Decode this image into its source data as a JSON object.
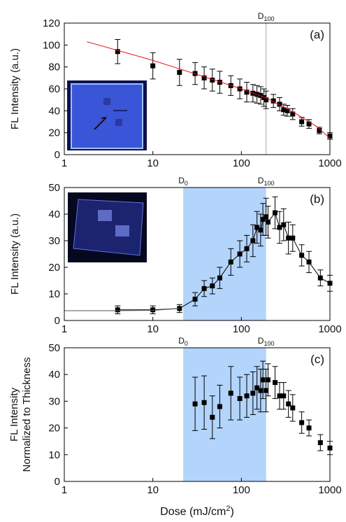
{
  "chart_data": [
    {
      "type": "scatter",
      "panel_label": "(a)",
      "ylabel": [
        "FL Intensity (a.u.)"
      ],
      "xscale": "log",
      "xlim": [
        1,
        1000
      ],
      "xticks": [
        1,
        10,
        100,
        1000
      ],
      "ylim": [
        0,
        120
      ],
      "yticks": [
        0,
        20,
        40,
        60,
        80,
        100,
        120
      ],
      "markers": [
        {
          "x": 190,
          "text": "D",
          "sub": "100",
          "line": true
        }
      ],
      "series": [
        {
          "color": "#000000",
          "marker": true,
          "x": [
            4,
            10,
            20,
            30,
            38,
            47,
            57,
            76,
            96,
            115,
            135,
            150,
            165,
            180,
            190,
            230,
            270,
            300,
            330,
            380,
            480,
            580,
            760,
            1000
          ],
          "values": [
            94,
            81,
            75,
            74,
            70,
            68,
            66,
            63,
            60,
            57,
            56,
            55,
            54,
            52,
            50,
            49,
            46,
            41,
            40,
            37,
            30,
            28,
            22,
            17
          ],
          "errors": [
            11,
            12,
            12,
            10,
            10,
            10,
            10,
            9,
            9,
            9,
            8,
            8,
            8,
            8,
            8,
            6,
            6,
            5,
            5,
            5,
            4,
            4,
            3,
            3
          ]
        },
        {
          "color": "#e8141c",
          "line": true,
          "x": [
            1.8,
            10,
            50,
            100,
            200,
            400,
            700,
            1000
          ],
          "values": [
            103,
            86,
            68,
            60,
            51,
            38,
            26,
            15
          ]
        }
      ]
    },
    {
      "type": "scatter",
      "panel_label": "(b)",
      "ylabel": [
        "FL Intensity (a.u.)"
      ],
      "xscale": "log",
      "xlim": [
        1,
        1000
      ],
      "xticks": [
        1,
        10,
        100,
        1000
      ],
      "ylim": [
        0,
        50
      ],
      "yticks": [
        0,
        10,
        20,
        30,
        40,
        50
      ],
      "shade": {
        "from": 22,
        "to": 190,
        "color": "#b3d4fb"
      },
      "markers": [
        {
          "x": 22,
          "text": "D",
          "sub": "0"
        },
        {
          "x": 190,
          "text": "D",
          "sub": "100"
        }
      ],
      "series": [
        {
          "color": "#000000",
          "marker": true,
          "line": true,
          "x": [
            4,
            10,
            20,
            30,
            38,
            47,
            57,
            76,
            96,
            115,
            135,
            150,
            165,
            175,
            190,
            200,
            240,
            270,
            300,
            340,
            380,
            480,
            580,
            780,
            1000
          ],
          "values": [
            4,
            4,
            4.5,
            8,
            12,
            13,
            16,
            22,
            25,
            27,
            30,
            35,
            34,
            38,
            39,
            37,
            40.5,
            35,
            36,
            31,
            31,
            24.5,
            22,
            16,
            14
          ],
          "errors": [
            1.5,
            1.5,
            1.5,
            2.5,
            3,
            3,
            4,
            5,
            5,
            5,
            6,
            6,
            6,
            6,
            7,
            6,
            6,
            6,
            6,
            6,
            5,
            4,
            4,
            3,
            3
          ]
        },
        {
          "color": "#555555",
          "line": true,
          "x": [
            1,
            4,
            10,
            20
          ],
          "values": [
            3.7,
            3.7,
            3.8,
            4.5
          ]
        }
      ]
    },
    {
      "type": "scatter",
      "panel_label": "(c)",
      "ylabel": [
        "FL Intensity",
        "Normalized to Thickness"
      ],
      "xscale": "log",
      "xlim": [
        1,
        1000
      ],
      "xticks": [
        1,
        10,
        100,
        1000
      ],
      "ylim": [
        0,
        50
      ],
      "yticks": [
        0,
        10,
        20,
        30,
        40,
        50
      ],
      "shade": {
        "from": 22,
        "to": 190,
        "color": "#b3d4fb"
      },
      "markers": [
        {
          "x": 22,
          "text": "D",
          "sub": "0"
        },
        {
          "x": 190,
          "text": "D",
          "sub": "100"
        }
      ],
      "xlabel": {
        "text": "Dose (mJ/cm",
        "sup": "2",
        "end": ")"
      },
      "series": [
        {
          "color": "#000000",
          "marker": true,
          "x": [
            30,
            38,
            47,
            57,
            76,
            96,
            115,
            135,
            150,
            165,
            175,
            190,
            200,
            240,
            270,
            300,
            340,
            380,
            480,
            580,
            780,
            1000
          ],
          "values": [
            29,
            29.5,
            24,
            28,
            33,
            31,
            32,
            33,
            35,
            34,
            38,
            34,
            38,
            37,
            32,
            32,
            29,
            27.5,
            22,
            20,
            14.5,
            12.5
          ],
          "errors": [
            10,
            10,
            8,
            8,
            10,
            8,
            8,
            8,
            8,
            8,
            7,
            8,
            6,
            6,
            5,
            5,
            5,
            5,
            4,
            3,
            3,
            2.5
          ]
        }
      ]
    }
  ]
}
